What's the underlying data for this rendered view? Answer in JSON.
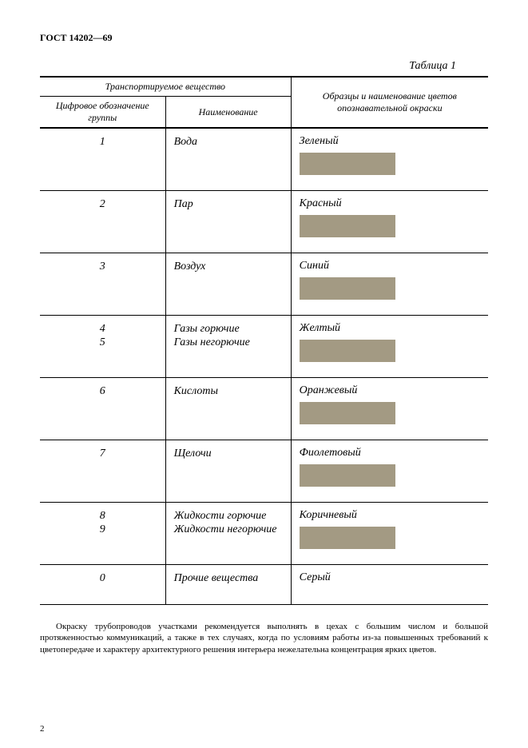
{
  "doc_header": "ГОСТ 14202—69",
  "table_caption": "Таблица 1",
  "header": {
    "span12": "Транспортируемое вещество",
    "col1": "Цифровое обозначение группы",
    "col2": "Наименование",
    "col3": "Образцы и наименование цветов опознавательной окраски"
  },
  "rows": [
    {
      "num": "1",
      "name": "Вода",
      "color_name": "Зеленый",
      "swatch": "#a39a83"
    },
    {
      "num": "2",
      "name": "Пар",
      "color_name": "Красный",
      "swatch": "#a39a83"
    },
    {
      "num": "3",
      "name": "Воздух",
      "color_name": "Синий",
      "swatch": "#a39a83"
    },
    {
      "num": "4\n5",
      "name": "Газы горючие\nГазы негорючие",
      "color_name": "Желтый",
      "swatch": "#a39a83"
    },
    {
      "num": "6",
      "name": "Кислоты",
      "color_name": "Оранжевый",
      "swatch": "#a39a83"
    },
    {
      "num": "7",
      "name": "Щелочи",
      "color_name": "Фиолетовый",
      "swatch": "#a39a83"
    },
    {
      "num": "8\n9",
      "name": "Жидкости горючие\nЖидкости негорючие",
      "color_name": "Коричневый",
      "swatch": "#a39a83"
    },
    {
      "num": "0",
      "name": "Прочие вещества",
      "color_name": "Серый",
      "swatch": null
    }
  ],
  "body_text": "Окраску трубопроводов участками рекомендуется выполнять в цехах с большим числом и большой протяженностью коммуникаций, а также в тех случаях, когда по условиям работы из-за повышенных требований к цветопередаче и характеру архитектурного решения интерьера нежелательна концентрация ярких цветов.",
  "page_num": "2",
  "colors": {
    "line": "#000000",
    "background": "#ffffff"
  },
  "fontsizes": {
    "header": 12,
    "caption": 14,
    "th": 12,
    "td": 14,
    "body": 11
  }
}
